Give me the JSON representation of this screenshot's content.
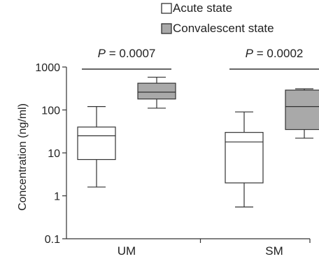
{
  "chart_data": {
    "type": "boxplot",
    "title": "",
    "xlabel": "",
    "ylabel": "Concentration (ng/ml)",
    "yscale": "log",
    "ylim": [
      0.1,
      1000
    ],
    "yticks": [
      "0.1",
      "1",
      "10",
      "100",
      "1000"
    ],
    "categories": [
      "UM",
      "SM"
    ],
    "legend": {
      "placement": "top"
    },
    "series": [
      {
        "name": "Acute state",
        "color": "#ffffff",
        "boxes": [
          {
            "category": "UM",
            "min": 1.6,
            "q1": 7,
            "median": 25,
            "q3": 40,
            "max": 120
          },
          {
            "category": "SM",
            "min": 0.55,
            "q1": 2,
            "median": 18,
            "q3": 30,
            "max": 90
          }
        ]
      },
      {
        "name": "Convalescent state",
        "color": "#a9a9a9",
        "boxes": [
          {
            "category": "UM",
            "min": 110,
            "q1": 180,
            "median": 260,
            "q3": 420,
            "max": 580
          },
          {
            "category": "SM",
            "min": 22,
            "q1": 35,
            "median": 120,
            "q3": 290,
            "max": 310
          }
        ]
      }
    ],
    "annotations": [
      {
        "category": "UM",
        "italic_prefix": "P",
        "rest": " = 0.0007"
      },
      {
        "category": "SM",
        "italic_prefix": "P",
        "rest": " = 0.0002"
      }
    ]
  }
}
